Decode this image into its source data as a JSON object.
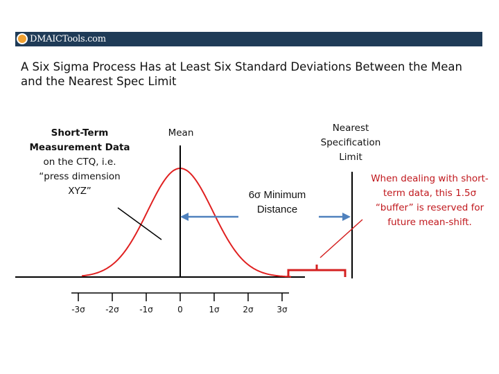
{
  "header": {
    "logo_text": "DMAICTools.com"
  },
  "title": "A Six Sigma Process Has at Least Six Standard Deviations Between the Mean and the Nearest Spec Limit",
  "labels": {
    "short_term_bold": "Short-Term Measurement Data",
    "short_term_rest": " on the CTQ, i.e. “press dimension XYZ”",
    "mean": "Mean",
    "nearest_spec": "Nearest Specification Limit",
    "min_distance": "6σ Minimum Distance",
    "buffer_note": "When dealing with short-term data, this 1.5σ “buffer” is reserved for future mean-shift."
  },
  "axis_ticks": [
    "-3σ",
    "-2σ",
    "-1σ",
    "0",
    "1σ",
    "2σ",
    "3σ"
  ],
  "colors": {
    "curve": "#e02020",
    "arrow": "#4f81bd",
    "note": "#c0171c",
    "header": "#1f3b57"
  }
}
